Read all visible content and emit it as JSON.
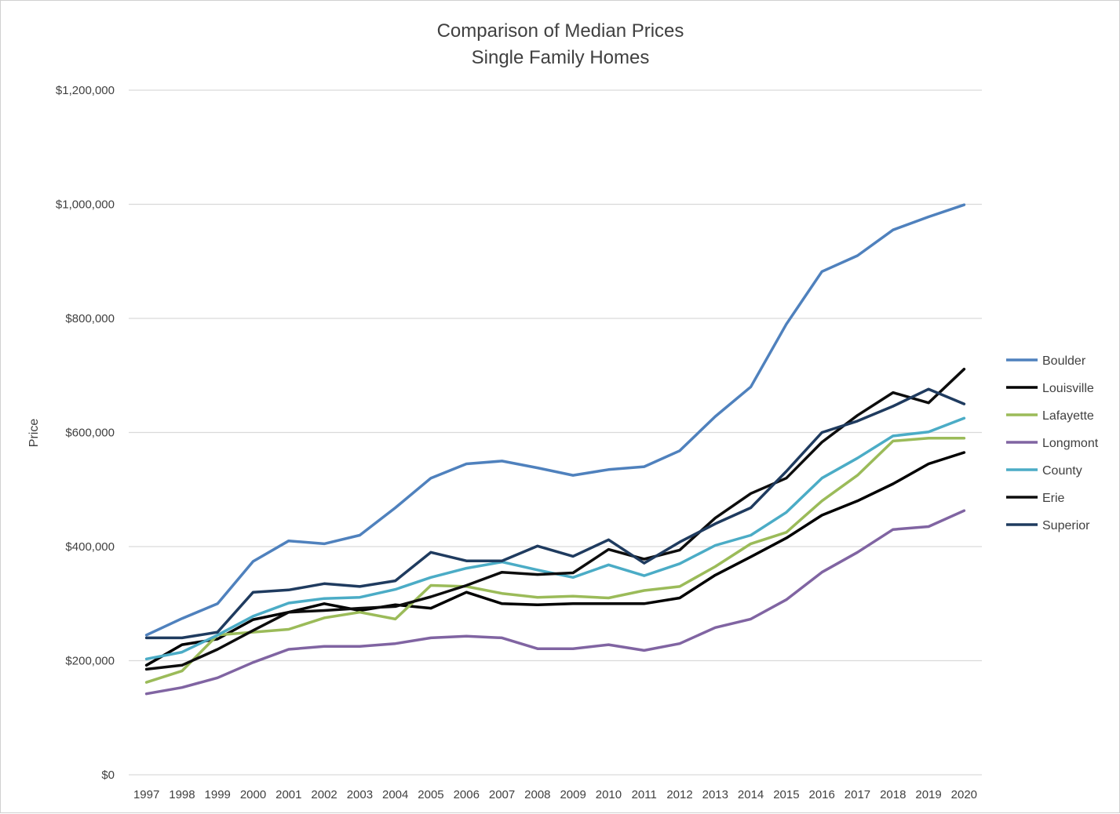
{
  "chart_data": {
    "type": "line",
    "title": "Comparison of Median Prices",
    "subtitle": "Single Family Homes",
    "xlabel": "",
    "ylabel": "Price",
    "ylim": [
      0,
      1200000
    ],
    "yticks": [
      0,
      200000,
      400000,
      600000,
      800000,
      1000000,
      1200000
    ],
    "ytick_labels": [
      "$0",
      "$200,000",
      "$400,000",
      "$600,000",
      "$800,000",
      "$1,000,000",
      "$1,200,000"
    ],
    "grid": true,
    "legend_position": "right",
    "categories": [
      "1997",
      "1998",
      "1999",
      "2000",
      "2001",
      "2002",
      "2003",
      "2004",
      "2005",
      "2006",
      "2007",
      "2008",
      "2009",
      "2010",
      "2011",
      "2012",
      "2013",
      "2014",
      "2015",
      "2016",
      "2017",
      "2018",
      "2019",
      "2020"
    ],
    "series": [
      {
        "name": "Boulder",
        "color": "#4f81bd",
        "values": [
          245000,
          274000,
          300000,
          374000,
          410000,
          405000,
          420000,
          468000,
          520000,
          545000,
          550000,
          538000,
          525000,
          535000,
          540000,
          568000,
          628000,
          680000,
          790000,
          882000,
          910000,
          955000,
          978000,
          999000
        ]
      },
      {
        "name": "Louisville",
        "color": "#000000",
        "values": [
          192000,
          228000,
          238000,
          272000,
          285000,
          300000,
          288000,
          298000,
          292000,
          320000,
          300000,
          298000,
          300000,
          300000,
          300000,
          310000,
          350000,
          382000,
          415000,
          455000,
          480000,
          510000,
          545000,
          565000
        ]
      },
      {
        "name": "Lafayette",
        "color": "#9bbb59",
        "values": [
          162000,
          182000,
          245000,
          250000,
          255000,
          275000,
          285000,
          273000,
          332000,
          330000,
          318000,
          311000,
          313000,
          310000,
          323000,
          330000,
          365000,
          405000,
          425000,
          480000,
          525000,
          585000,
          590000,
          590000
        ]
      },
      {
        "name": "Longmont",
        "color": "#8064a2",
        "values": [
          142000,
          153000,
          170000,
          197000,
          220000,
          225000,
          225000,
          230000,
          240000,
          243000,
          240000,
          221000,
          221000,
          228000,
          218000,
          230000,
          258000,
          273000,
          307000,
          355000,
          390000,
          430000,
          435000,
          463000
        ]
      },
      {
        "name": "County",
        "color": "#4bacc6",
        "values": [
          203000,
          215000,
          245000,
          278000,
          301000,
          309000,
          311000,
          325000,
          346000,
          362000,
          373000,
          359000,
          346000,
          368000,
          349000,
          370000,
          402000,
          420000,
          460000,
          520000,
          555000,
          594000,
          601000,
          625000
        ]
      },
      {
        "name": "Erie",
        "color": "#0d0d0d",
        "values": [
          185000,
          192000,
          220000,
          253000,
          285000,
          288000,
          292000,
          295000,
          312000,
          332000,
          355000,
          351000,
          354000,
          395000,
          378000,
          394000,
          450000,
          493000,
          520000,
          583000,
          630000,
          670000,
          652000,
          711000
        ]
      },
      {
        "name": "Superior",
        "color": "#1f3b5f",
        "values": [
          240000,
          240000,
          250000,
          320000,
          324000,
          335000,
          330000,
          340000,
          390000,
          375000,
          375000,
          401000,
          383000,
          412000,
          371000,
          408000,
          440000,
          468000,
          532000,
          600000,
          620000,
          646000,
          676000,
          650000
        ]
      }
    ]
  }
}
